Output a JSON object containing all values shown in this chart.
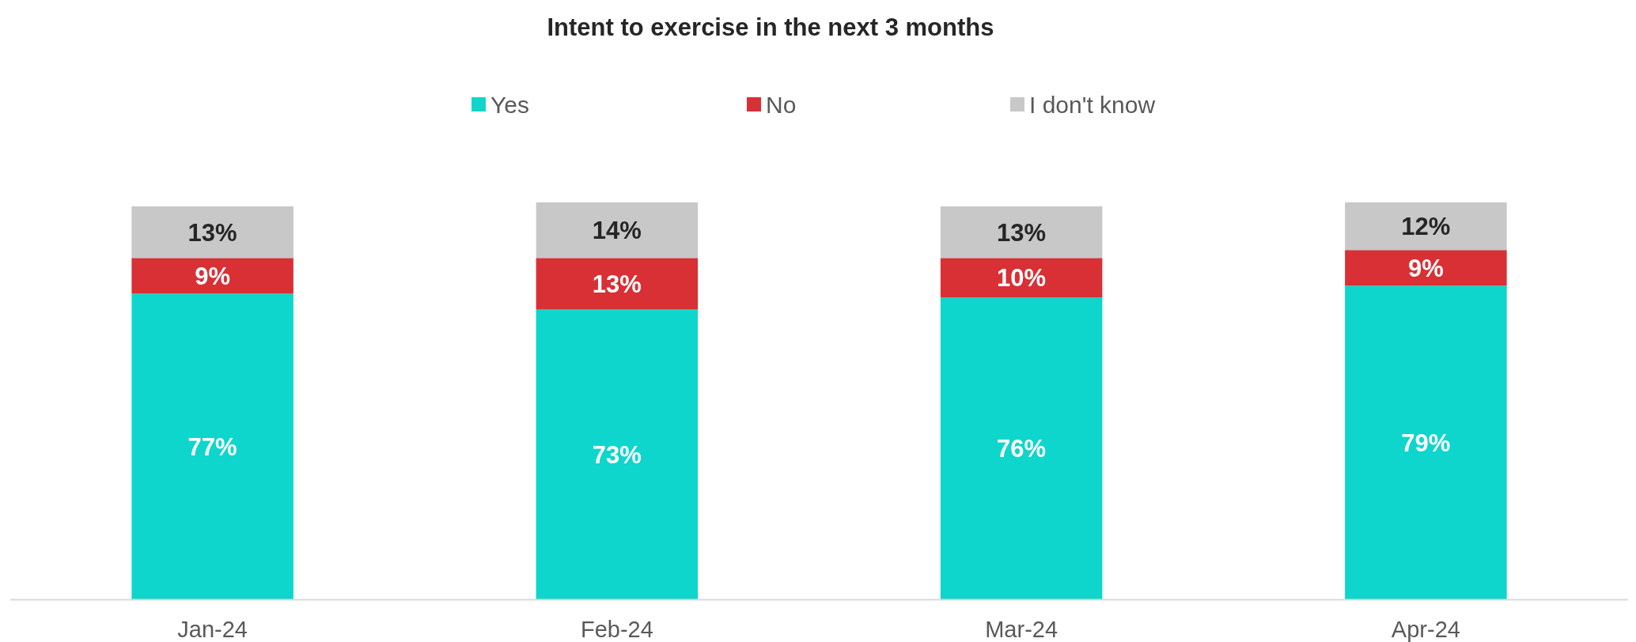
{
  "chart_data": {
    "type": "bar",
    "title": "Intent to exercise in the next 3 months",
    "categories": [
      "Jan-24",
      "Feb-24",
      "Mar-24",
      "Apr-24"
    ],
    "stacked": true,
    "legend": "top",
    "series": [
      {
        "name": "Yes",
        "color": "#0ed6cc",
        "values": [
          77,
          73,
          76,
          79
        ],
        "value_labels": [
          "77%",
          "73%",
          "76%",
          "79%"
        ]
      },
      {
        "name": "No",
        "color": "#d83035",
        "values": [
          9,
          13,
          10,
          9
        ],
        "value_labels": [
          "9%",
          "13%",
          "10%",
          "9%"
        ]
      },
      {
        "name": "I don't know",
        "color": "#c8c8c8",
        "values": [
          13,
          14,
          13,
          12
        ],
        "value_labels": [
          "13%",
          "14%",
          "13%",
          "12%"
        ]
      }
    ]
  }
}
